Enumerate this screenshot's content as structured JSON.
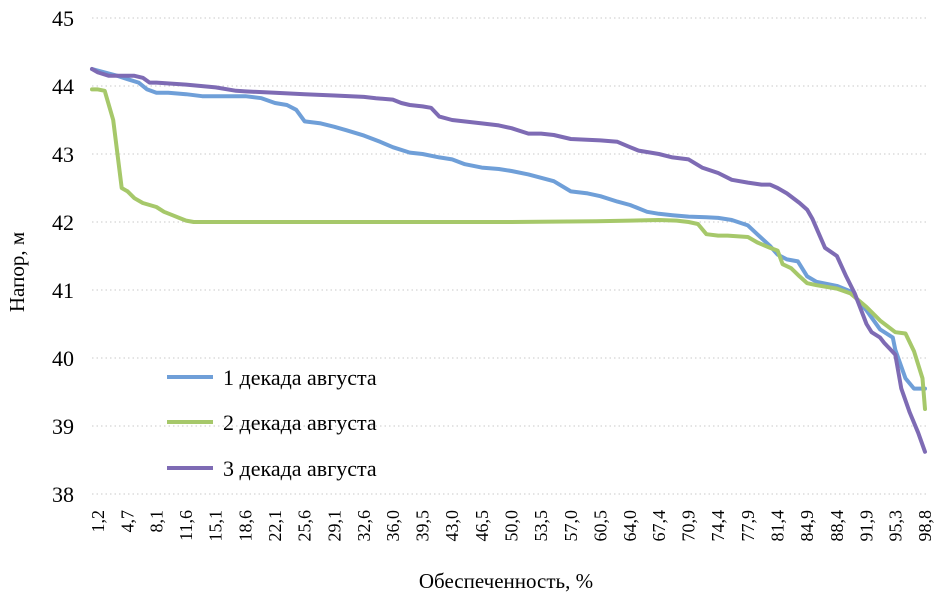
{
  "chart_data": {
    "type": "line",
    "title": "",
    "xlabel": "Обеспеченность, %",
    "ylabel": "Напор, м",
    "ylim": [
      38,
      45
    ],
    "yticks": [
      "38",
      "39",
      "40",
      "41",
      "42",
      "43",
      "44",
      "45"
    ],
    "xticks": [
      "1,2",
      "4,7",
      "8,1",
      "11,6",
      "15,1",
      "18,6",
      "22,1",
      "25,6",
      "29,1",
      "32,6",
      "36,0",
      "39,5",
      "43,0",
      "46,5",
      "50,0",
      "53,5",
      "57,0",
      "60,5",
      "64,0",
      "67,4",
      "70,9",
      "74,4",
      "77,9",
      "81,4",
      "84,9",
      "88,4",
      "91,9",
      "95,3",
      "98,8"
    ],
    "xlim": [
      1.2,
      98.8
    ],
    "grid": true,
    "legend_position": "center-left",
    "series": [
      {
        "name": "1 декада августа",
        "color": "#6f9fd8",
        "x": [
          0.5,
          2.0,
          3.5,
          4.7,
          6.0,
          7.0,
          8.1,
          9.5,
          11.6,
          13.5,
          15.1,
          18.6,
          20.5,
          22.1,
          23.5,
          24.6,
          25.6,
          27.5,
          29.1,
          30.5,
          32.6,
          34.5,
          36.0,
          38.0,
          39.5,
          41.5,
          43.0,
          44.5,
          46.5,
          48.5,
          50.0,
          52.0,
          53.5,
          55.0,
          57.0,
          59.0,
          60.5,
          62.5,
          64.0,
          66.0,
          67.4,
          69.0,
          70.9,
          73.0,
          74.4,
          76.0,
          77.9,
          79.0,
          80.5,
          81.4,
          82.5,
          83.8,
          84.9,
          86.0,
          88.4,
          90.0,
          91.9,
          93.5,
          95.0,
          95.3,
          96.5,
          97.5,
          98.8
        ],
        "values": [
          44.25,
          44.2,
          44.15,
          44.1,
          44.05,
          43.95,
          43.9,
          43.9,
          43.88,
          43.85,
          43.85,
          43.85,
          43.82,
          43.75,
          43.72,
          43.65,
          43.48,
          43.45,
          43.4,
          43.35,
          43.27,
          43.18,
          43.1,
          43.02,
          43.0,
          42.95,
          42.92,
          42.85,
          42.8,
          42.78,
          42.75,
          42.7,
          42.65,
          42.6,
          42.45,
          42.42,
          42.38,
          42.3,
          42.25,
          42.15,
          42.12,
          42.1,
          42.08,
          42.07,
          42.06,
          42.03,
          41.95,
          41.82,
          41.65,
          41.52,
          41.45,
          41.42,
          41.2,
          41.12,
          41.06,
          40.98,
          40.7,
          40.42,
          40.3,
          40.12,
          39.7,
          39.55,
          39.55
        ]
      },
      {
        "name": "2 декада августа",
        "color": "#a6c86a",
        "x": [
          0.5,
          1.2,
          2.0,
          3.0,
          4.0,
          4.7,
          5.5,
          6.5,
          7.3,
          8.1,
          9.0,
          10.0,
          11.0,
          11.6,
          12.5,
          13.5,
          15.1,
          20.0,
          30.0,
          40.0,
          50.0,
          60.0,
          64.0,
          67.4,
          69.5,
          70.9,
          72.0,
          73.0,
          74.4,
          75.5,
          77.9,
          79.0,
          80.5,
          81.4,
          82.0,
          83.0,
          84.0,
          84.9,
          86.0,
          88.4,
          90.0,
          91.9,
          93.5,
          95.3,
          96.5,
          97.5,
          98.5,
          98.8
        ],
        "values": [
          43.95,
          43.95,
          43.93,
          43.5,
          42.5,
          42.45,
          42.35,
          42.28,
          42.25,
          42.22,
          42.15,
          42.1,
          42.05,
          42.02,
          42.0,
          42.0,
          42.0,
          42.0,
          42.0,
          42.0,
          42.0,
          42.01,
          42.02,
          42.03,
          42.02,
          42.0,
          41.97,
          41.82,
          41.8,
          41.8,
          41.78,
          41.7,
          41.62,
          41.58,
          41.38,
          41.32,
          41.2,
          41.1,
          41.07,
          41.02,
          40.95,
          40.75,
          40.55,
          40.38,
          40.36,
          40.1,
          39.7,
          39.25
        ]
      },
      {
        "name": "3 декада августа",
        "color": "#7e6bb4",
        "x": [
          0.5,
          1.2,
          2.5,
          3.5,
          4.7,
          5.5,
          6.5,
          7.3,
          8.1,
          11.6,
          15.1,
          17.5,
          18.6,
          22.1,
          25.6,
          29.1,
          32.6,
          34.0,
          36.0,
          37.0,
          38.0,
          39.5,
          40.5,
          41.5,
          43.0,
          46.5,
          48.5,
          50.0,
          52.0,
          53.5,
          55.0,
          57.0,
          60.5,
          62.5,
          64.0,
          65.0,
          67.4,
          69.0,
          70.9,
          72.5,
          74.4,
          76.0,
          77.9,
          79.5,
          80.5,
          81.4,
          82.5,
          84.0,
          84.9,
          85.5,
          86.2,
          87.0,
          88.4,
          89.5,
          90.5,
          91.9,
          92.5,
          93.5,
          94.0,
          95.3,
          96.0,
          97.0,
          98.0,
          98.8
        ],
        "values": [
          44.25,
          44.2,
          44.15,
          44.15,
          44.15,
          44.15,
          44.12,
          44.05,
          44.05,
          44.02,
          43.98,
          43.93,
          43.92,
          43.9,
          43.88,
          43.86,
          43.84,
          43.82,
          43.8,
          43.75,
          43.72,
          43.7,
          43.68,
          43.55,
          43.5,
          43.45,
          43.42,
          43.38,
          43.3,
          43.3,
          43.28,
          43.22,
          43.2,
          43.18,
          43.1,
          43.05,
          43.0,
          42.95,
          42.92,
          42.8,
          42.72,
          42.62,
          42.58,
          42.55,
          42.55,
          42.5,
          42.42,
          42.28,
          42.18,
          42.05,
          41.85,
          41.62,
          41.5,
          41.2,
          40.95,
          40.5,
          40.38,
          40.3,
          40.22,
          40.05,
          39.55,
          39.2,
          38.9,
          38.62
        ]
      }
    ]
  }
}
